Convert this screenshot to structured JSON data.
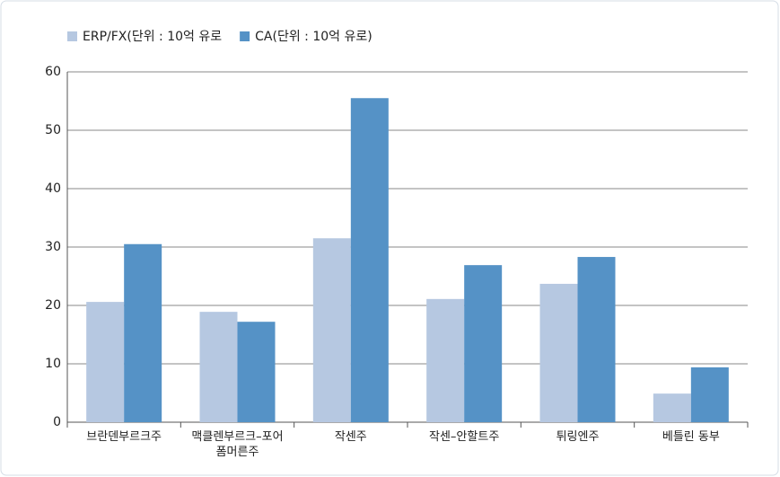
{
  "chart_data": {
    "type": "bar",
    "categories": [
      "브란덴부르크주",
      "맥클렌부르크–포어\n폼머른주",
      "작센주",
      "작센–안할트주",
      "튀링엔주",
      "베틀린 동부"
    ],
    "series": [
      {
        "name": "ERP/FX(단위 : 10억 유로",
        "color": "#b6c8e1",
        "values": [
          20.6,
          18.9,
          31.5,
          21.1,
          23.7,
          4.9
        ]
      },
      {
        "name": "CA(단위 : 10억 유로)",
        "color": "#5592c6",
        "values": [
          30.5,
          17.2,
          55.5,
          26.9,
          28.3,
          9.4
        ]
      }
    ],
    "ylim": [
      0,
      60
    ],
    "yticks": [
      0,
      10,
      20,
      30,
      40,
      50,
      60
    ],
    "grid": true,
    "legend": "top-left"
  }
}
